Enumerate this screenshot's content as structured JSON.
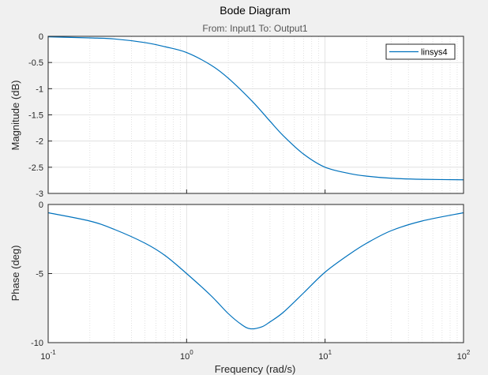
{
  "chart_data": {
    "type": "line",
    "title": "Bode Diagram",
    "subtitle": "From: Input1  To: Output1",
    "xlabel": "Frequency  (rad/s)",
    "xscale": "log",
    "xlim": [
      0.1,
      100
    ],
    "x_ticks": [
      {
        "value": 0.1,
        "base": "10",
        "exp": "-1"
      },
      {
        "value": 1,
        "base": "10",
        "exp": "0"
      },
      {
        "value": 10,
        "base": "10",
        "exp": "1"
      },
      {
        "value": 100,
        "base": "10",
        "exp": "2"
      }
    ],
    "grid": true,
    "legend": {
      "placement": "top-right",
      "entries": [
        "linsys4"
      ]
    },
    "line_color": "#0072bd",
    "panels": [
      {
        "name": "magnitude",
        "ylabel": "Magnitude (dB)",
        "ylim": [
          -3,
          0
        ],
        "y_ticks": [
          0,
          -0.5,
          -1,
          -1.5,
          -2,
          -2.5,
          -3
        ],
        "y_tick_labels": [
          "0",
          "-0.5",
          "-1",
          "-1.5",
          "-2",
          "-2.5",
          "-3"
        ],
        "series": [
          {
            "name": "linsys4",
            "x": [
              0.1,
              0.2,
              0.3,
              0.5,
              0.7,
              1,
              1.5,
              2,
              3,
              4,
              5,
              7,
              10,
              15,
              20,
              30,
              50,
              100
            ],
            "values": [
              -0.01,
              -0.03,
              -0.05,
              -0.12,
              -0.2,
              -0.31,
              -0.55,
              -0.8,
              -1.25,
              -1.62,
              -1.9,
              -2.25,
              -2.5,
              -2.62,
              -2.67,
              -2.71,
              -2.73,
              -2.74
            ]
          }
        ]
      },
      {
        "name": "phase",
        "ylabel": "Phase (deg)",
        "ylim": [
          -10,
          0
        ],
        "y_ticks": [
          0,
          -5,
          -10
        ],
        "y_tick_labels": [
          "0",
          "-5",
          "-10"
        ],
        "series": [
          {
            "name": "linsys4",
            "x": [
              0.1,
              0.2,
              0.3,
              0.5,
              0.7,
              1,
              1.5,
              2,
              2.5,
              2.9,
              3.5,
              4,
              5,
              7,
              10,
              15,
              20,
              30,
              50,
              100
            ],
            "values": [
              -0.6,
              -1.2,
              -1.8,
              -2.8,
              -3.7,
              -5,
              -6.6,
              -7.9,
              -8.7,
              -9.0,
              -8.85,
              -8.5,
              -7.8,
              -6.4,
              -4.9,
              -3.6,
              -2.8,
              -1.9,
              -1.2,
              -0.6
            ]
          }
        ]
      }
    ]
  }
}
